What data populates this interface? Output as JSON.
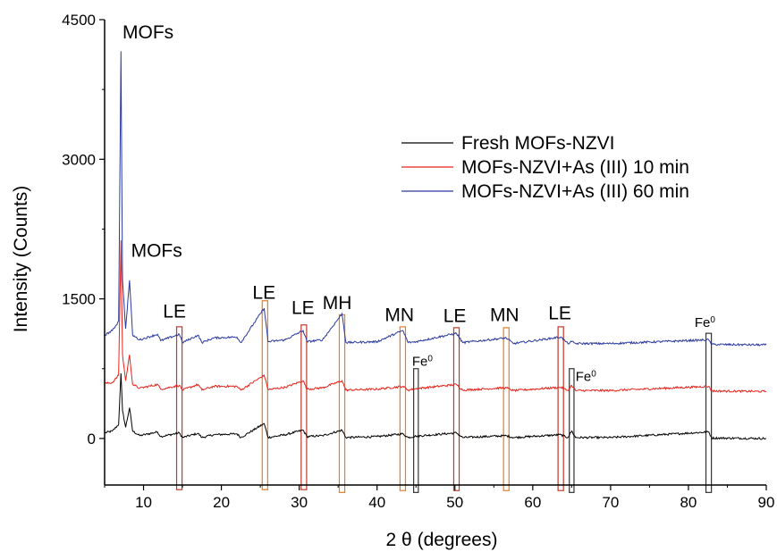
{
  "chart_data": {
    "type": "line",
    "title": "",
    "xlabel": "2 θ (degrees)",
    "ylabel": "Intensity (Counts)",
    "xlim": [
      5,
      90
    ],
    "ylim": [
      -500,
      4500
    ],
    "x_ticks": [
      10,
      20,
      30,
      40,
      50,
      60,
      70,
      80,
      90
    ],
    "y_ticks": [
      0,
      1500,
      3000,
      4500
    ],
    "legend_position": "top-right",
    "series": [
      {
        "name": "Fresh MOFs-NZVI",
        "color": "#000000",
        "baseline": 0,
        "points": [
          [
            5,
            60
          ],
          [
            6,
            80
          ],
          [
            6.8,
            150
          ],
          [
            7.1,
            700
          ],
          [
            7.3,
            300
          ],
          [
            7.7,
            120
          ],
          [
            8.2,
            330
          ],
          [
            8.6,
            80
          ],
          [
            9.5,
            30
          ],
          [
            11.8,
            70
          ],
          [
            12.2,
            20
          ],
          [
            14.6,
            60
          ],
          [
            15,
            10
          ],
          [
            17,
            55
          ],
          [
            17.5,
            10
          ],
          [
            19,
            40
          ],
          [
            22,
            50
          ],
          [
            22.5,
            10
          ],
          [
            25.5,
            160
          ],
          [
            26,
            10
          ],
          [
            28.2,
            40
          ],
          [
            30.5,
            90
          ],
          [
            31,
            20
          ],
          [
            33,
            30
          ],
          [
            35.5,
            90
          ],
          [
            36,
            10
          ],
          [
            40,
            20
          ],
          [
            43.3,
            50
          ],
          [
            44,
            10
          ],
          [
            45,
            25
          ],
          [
            50.2,
            60
          ],
          [
            51,
            10
          ],
          [
            56.6,
            30
          ],
          [
            57.5,
            10
          ],
          [
            63.6,
            40
          ],
          [
            64.5,
            10
          ],
          [
            65,
            80
          ],
          [
            65.5,
            10
          ],
          [
            70,
            10
          ],
          [
            82.6,
            70
          ],
          [
            83,
            5
          ],
          [
            90,
            0
          ]
        ]
      },
      {
        "name": "MOFs-NZVI+As (III) 10 min",
        "color": "#e8231a",
        "baseline": 510,
        "points": [
          [
            5,
            590
          ],
          [
            6,
            600
          ],
          [
            6.8,
            680
          ],
          [
            7.1,
            2130
          ],
          [
            7.3,
            900
          ],
          [
            7.7,
            620
          ],
          [
            8.2,
            900
          ],
          [
            8.6,
            580
          ],
          [
            9.5,
            540
          ],
          [
            11.8,
            580
          ],
          [
            12.2,
            530
          ],
          [
            14.6,
            570
          ],
          [
            15,
            520
          ],
          [
            17,
            580
          ],
          [
            17.5,
            520
          ],
          [
            19,
            560
          ],
          [
            22,
            560
          ],
          [
            22.5,
            520
          ],
          [
            25.5,
            680
          ],
          [
            26,
            525
          ],
          [
            28.2,
            550
          ],
          [
            30.5,
            620
          ],
          [
            31,
            530
          ],
          [
            33,
            545
          ],
          [
            35.5,
            620
          ],
          [
            36,
            520
          ],
          [
            40,
            530
          ],
          [
            43.3,
            560
          ],
          [
            44,
            520
          ],
          [
            45,
            535
          ],
          [
            50.2,
            580
          ],
          [
            51,
            520
          ],
          [
            56.6,
            545
          ],
          [
            57.5,
            515
          ],
          [
            63.6,
            550
          ],
          [
            64.5,
            515
          ],
          [
            65,
            570
          ],
          [
            65.5,
            515
          ],
          [
            70,
            515
          ],
          [
            82.6,
            560
          ],
          [
            83,
            510
          ],
          [
            90,
            505
          ]
        ]
      },
      {
        "name": "MOFs-NZVI+As (III) 60 min",
        "color": "#2a3a9e",
        "baseline": 1010,
        "points": [
          [
            5,
            1110
          ],
          [
            6,
            1160
          ],
          [
            6.8,
            1260
          ],
          [
            7.1,
            4160
          ],
          [
            7.3,
            1700
          ],
          [
            7.7,
            1180
          ],
          [
            8.2,
            1700
          ],
          [
            8.6,
            1110
          ],
          [
            9.5,
            1060
          ],
          [
            11.8,
            1120
          ],
          [
            12.2,
            1050
          ],
          [
            14.6,
            1120
          ],
          [
            15,
            1030
          ],
          [
            17,
            1110
          ],
          [
            17.5,
            1030
          ],
          [
            19,
            1080
          ],
          [
            22,
            1090
          ],
          [
            22.5,
            1030
          ],
          [
            25.5,
            1400
          ],
          [
            26,
            1040
          ],
          [
            28.2,
            1060
          ],
          [
            30.5,
            1160
          ],
          [
            31,
            1040
          ],
          [
            33,
            1060
          ],
          [
            35.5,
            1340
          ],
          [
            36,
            1030
          ],
          [
            40,
            1040
          ],
          [
            43.3,
            1160
          ],
          [
            44,
            1030
          ],
          [
            45,
            1040
          ],
          [
            50.2,
            1130
          ],
          [
            51,
            1030
          ],
          [
            56.6,
            1080
          ],
          [
            57.5,
            1020
          ],
          [
            63.6,
            1090
          ],
          [
            64.5,
            1020
          ],
          [
            65,
            1040
          ],
          [
            65.5,
            1020
          ],
          [
            70,
            1020
          ],
          [
            82.6,
            1060
          ],
          [
            83,
            1010
          ],
          [
            90,
            1005
          ]
        ]
      }
    ],
    "annotations": [
      {
        "text": "MOFs",
        "x": 7.3,
        "y": 4300
      },
      {
        "text": "MOFs",
        "x": 8.4,
        "y": 1950
      },
      {
        "text": "LE",
        "x": 12.5,
        "y": 1300
      },
      {
        "text": "LE",
        "x": 24,
        "y": 1500
      },
      {
        "text": "LE",
        "x": 29,
        "y": 1340
      },
      {
        "text": "MH",
        "x": 33,
        "y": 1390
      },
      {
        "text": "MN",
        "x": 41,
        "y": 1260
      },
      {
        "text": "LE",
        "x": 48.5,
        "y": 1250
      },
      {
        "text": "MN",
        "x": 54.5,
        "y": 1260
      },
      {
        "text": "LE",
        "x": 62,
        "y": 1280
      },
      {
        "text": "Fe",
        "sup": "0",
        "x": 44.5,
        "y": 780,
        "small": true
      },
      {
        "text": "Fe",
        "sup": "0",
        "x": 65.5,
        "y": 620,
        "small": true
      },
      {
        "text": "Fe",
        "sup": "0",
        "x": 80.8,
        "y": 1200,
        "small": true
      }
    ],
    "marker_boxes": [
      {
        "x": 14.6,
        "width": 0.7,
        "top": 1200,
        "bottom": -550,
        "color": "#c0392b"
      },
      {
        "x": 25.6,
        "width": 0.7,
        "top": 1480,
        "bottom": -550,
        "color": "#e67e22"
      },
      {
        "x": 30.6,
        "width": 0.7,
        "top": 1220,
        "bottom": -550,
        "color": "#c0392b"
      },
      {
        "x": 35.5,
        "width": 0.7,
        "top": 1330,
        "bottom": -580,
        "color": "#e67e22"
      },
      {
        "x": 43.3,
        "width": 0.7,
        "top": 1200,
        "bottom": -560,
        "color": "#e67e22"
      },
      {
        "x": 45.0,
        "width": 0.6,
        "top": 750,
        "bottom": -580,
        "color": "#333333"
      },
      {
        "x": 50.2,
        "width": 0.7,
        "top": 1190,
        "bottom": -560,
        "color": "#c0392b"
      },
      {
        "x": 56.6,
        "width": 0.7,
        "top": 1190,
        "bottom": -560,
        "color": "#e67e22"
      },
      {
        "x": 63.6,
        "width": 0.7,
        "top": 1200,
        "bottom": -560,
        "color": "#c0392b"
      },
      {
        "x": 65.0,
        "width": 0.6,
        "top": 750,
        "bottom": -580,
        "color": "#333333"
      },
      {
        "x": 82.6,
        "width": 0.7,
        "top": 1130,
        "bottom": -580,
        "color": "#333333"
      }
    ]
  }
}
